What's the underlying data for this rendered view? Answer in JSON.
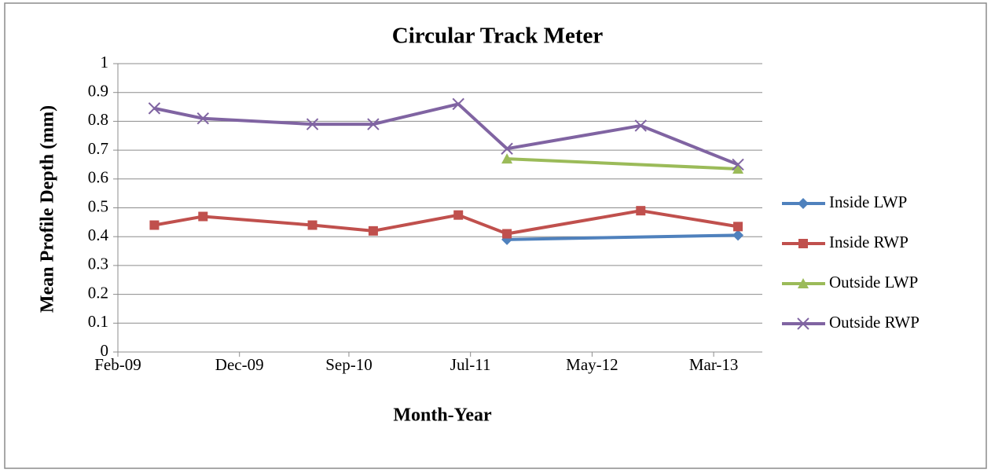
{
  "chart_data": {
    "type": "line",
    "title": "Circular Track Meter",
    "x_label": "Month-Year",
    "y_label": "Mean Profile Depth (mm)",
    "xlim": [
      "2009-02",
      "2013-07"
    ],
    "xticks": [
      {
        "value": "2009-02",
        "label": "Feb-09"
      },
      {
        "value": "2009-12",
        "label": "Dec-09"
      },
      {
        "value": "2010-09",
        "label": "Sep-10"
      },
      {
        "value": "2011-07",
        "label": "Jul-11"
      },
      {
        "value": "2012-05",
        "label": "May-12"
      },
      {
        "value": "2013-03",
        "label": "Mar-13"
      }
    ],
    "ylim": [
      0,
      1
    ],
    "yticks": [
      0,
      0.1,
      0.2,
      0.3,
      0.4,
      0.5,
      0.6,
      0.7,
      0.8,
      0.9,
      1
    ],
    "grid": true,
    "legend": "right",
    "series": [
      {
        "name": "Inside LWP",
        "color": "#4f81bd",
        "marker": "diamond",
        "x": [
          "2011-10",
          "2013-05"
        ],
        "values": [
          0.39,
          0.405
        ]
      },
      {
        "name": "Inside RWP",
        "color": "#c0504d",
        "marker": "square",
        "x": [
          "2009-05",
          "2009-09",
          "2010-06",
          "2010-11",
          "2011-06",
          "2011-10",
          "2012-09",
          "2013-05"
        ],
        "values": [
          0.44,
          0.47,
          0.44,
          0.42,
          0.475,
          0.41,
          0.49,
          0.435
        ]
      },
      {
        "name": "Outside LWP",
        "color": "#9bbb59",
        "marker": "triangle",
        "x": [
          "2011-10",
          "2013-05"
        ],
        "values": [
          0.67,
          0.635
        ]
      },
      {
        "name": "Outside RWP",
        "color": "#8064a2",
        "marker": "x",
        "x": [
          "2009-05",
          "2009-09",
          "2010-06",
          "2010-11",
          "2011-06",
          "2011-10",
          "2012-09",
          "2013-05"
        ],
        "values": [
          0.845,
          0.81,
          0.79,
          0.79,
          0.86,
          0.705,
          0.785,
          0.65
        ]
      }
    ]
  }
}
